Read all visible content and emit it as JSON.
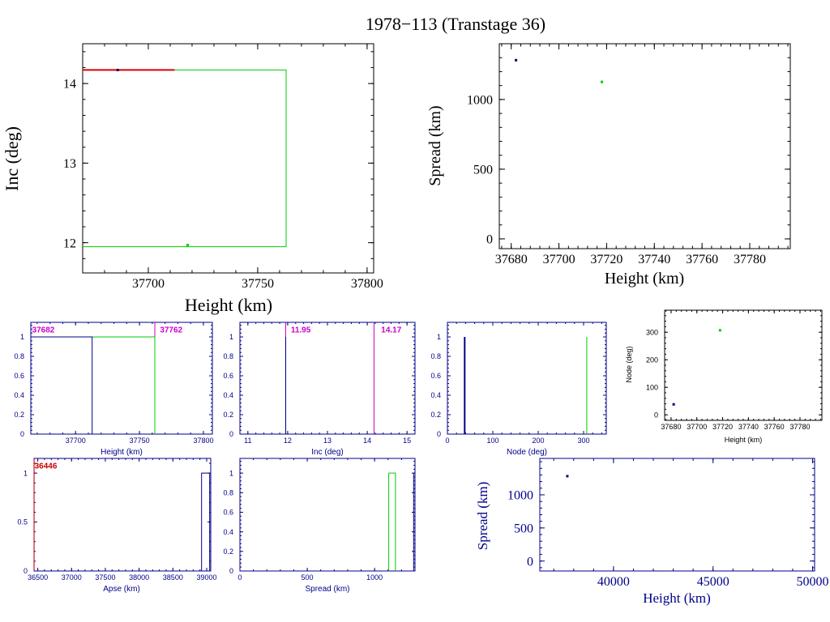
{
  "page_title": "1978−113 (Transtage 36)",
  "chart_data": [
    {
      "id": "inc_vs_height",
      "type": "line",
      "xlabel": "Height (km)",
      "ylabel": "Inc (deg)",
      "xlim": [
        37670,
        37803
      ],
      "ylim": [
        11.62,
        14.5
      ],
      "xticks": [
        37700,
        37750,
        37800
      ],
      "yticks": [
        12,
        13,
        14
      ],
      "series": [
        {
          "color": "#00cc00",
          "type": "polyline",
          "points": [
            [
              37670,
              14.17
            ],
            [
              37763,
              14.17
            ],
            [
              37763,
              11.95
            ],
            [
              37670,
              11.95
            ]
          ]
        },
        {
          "color": "#dd0000",
          "type": "polyline",
          "points": [
            [
              37670,
              14.17
            ],
            [
              37712,
              14.17
            ]
          ]
        },
        {
          "color": "#000088",
          "type": "point",
          "points": [
            [
              37686,
              14.17
            ]
          ]
        },
        {
          "color": "#00cc00",
          "type": "point",
          "points": [
            [
              37718,
              11.97
            ]
          ]
        }
      ]
    },
    {
      "id": "spread_vs_height",
      "type": "scatter",
      "xlabel": "Height (km)",
      "ylabel": "Spread (km)",
      "xlim": [
        37675,
        37797
      ],
      "ylim": [
        -70,
        1400
      ],
      "xticks": [
        37680,
        37700,
        37720,
        37740,
        37760,
        37780
      ],
      "yticks": [
        0,
        500,
        1000
      ],
      "series": [
        {
          "color": "#000088",
          "points": [
            [
              37682,
              1282
            ]
          ]
        },
        {
          "color": "#00cc00",
          "points": [
            [
              37718,
              1126
            ]
          ]
        }
      ]
    },
    {
      "id": "height_hist",
      "type": "line",
      "xlabel": "Height (km)",
      "xlim": [
        37665,
        37807
      ],
      "ylim": [
        0,
        1.15
      ],
      "xticks": [
        37700,
        37750,
        37800
      ],
      "yticks": [
        0,
        0.2,
        0.4,
        0.6,
        0.8,
        1
      ],
      "annotations": [
        {
          "text": "37682",
          "x": 37666,
          "y": 1.07,
          "color": "#cc00cc"
        },
        {
          "text": "37762",
          "x": 37766,
          "y": 1.07,
          "color": "#cc00cc"
        }
      ],
      "vlines": [
        {
          "x": 37762,
          "color": "#cc00cc"
        }
      ],
      "series": [
        {
          "color": "#00cc00",
          "type": "polyline",
          "points": [
            [
              37665,
              1
            ],
            [
              37762,
              1
            ],
            [
              37762,
              0
            ]
          ]
        },
        {
          "color": "#000088",
          "type": "polyline",
          "points": [
            [
              37665,
              1
            ],
            [
              37713,
              1
            ],
            [
              37713,
              0
            ]
          ]
        }
      ]
    },
    {
      "id": "inc_hist",
      "type": "line",
      "xlabel": "Inc (deg)",
      "xlim": [
        10.8,
        15.2
      ],
      "ylim": [
        0,
        1.15
      ],
      "xticks": [
        11,
        12,
        13,
        14,
        15
      ],
      "yticks": [
        0,
        0.2,
        0.4,
        0.6,
        0.8,
        1
      ],
      "annotations": [
        {
          "text": "11.95",
          "x": 12.08,
          "y": 1.07,
          "color": "#cc00cc"
        },
        {
          "text": "14.17",
          "x": 14.35,
          "y": 1.07,
          "color": "#cc00cc"
        }
      ],
      "vlines": [
        {
          "x": 11.95,
          "color": "#cc00cc"
        },
        {
          "x": 14.17,
          "color": "#cc00cc"
        }
      ],
      "series": [
        {
          "color": "#000088",
          "type": "polyline",
          "points": [
            [
              11.95,
              0
            ],
            [
              11.95,
              1
            ]
          ]
        }
      ]
    },
    {
      "id": "node_hist",
      "type": "line",
      "xlabel": "Node (deg)",
      "xlim": [
        0,
        350
      ],
      "ylim": [
        0,
        1.15
      ],
      "xticks": [
        0,
        100,
        200,
        300
      ],
      "yticks": [
        0,
        0.2,
        0.4,
        0.6,
        0.8,
        1
      ],
      "series": [
        {
          "color": "#000088",
          "type": "polyline",
          "points": [
            [
              38,
              0
            ],
            [
              38,
              1
            ]
          ]
        },
        {
          "color": "#00cc00",
          "type": "polyline",
          "points": [
            [
              307,
              0
            ],
            [
              307,
              1
            ]
          ]
        }
      ]
    },
    {
      "id": "node_vs_height",
      "type": "scatter",
      "xlabel": "Height (km)",
      "ylabel": "Node (deg)",
      "xlim": [
        37675,
        37797
      ],
      "ylim": [
        -20,
        380
      ],
      "xticks": [
        37680,
        37700,
        37720,
        37740,
        37760,
        37780
      ],
      "yticks": [
        0,
        100,
        200,
        300
      ],
      "series": [
        {
          "color": "#000088",
          "points": [
            [
              37682,
              38
            ]
          ]
        },
        {
          "color": "#00cc00",
          "points": [
            [
              37718,
              307
            ]
          ]
        }
      ]
    },
    {
      "id": "apse_hist",
      "type": "line",
      "xlabel": "Apse (km)",
      "xlim": [
        36445,
        39060
      ],
      "ylim": [
        0,
        1.15
      ],
      "xticks": [
        36500,
        37000,
        37500,
        38000,
        38500,
        39000
      ],
      "yticks": [
        0,
        0.5,
        1
      ],
      "annotations": [
        {
          "text": "36446",
          "x": 36452,
          "y": 1.07,
          "color": "#cc0000"
        }
      ],
      "vlines": [
        {
          "x": 36446,
          "color": "#cc0000"
        }
      ],
      "series": [
        {
          "color": "#000088",
          "type": "polyline",
          "points": [
            [
              38925,
              0
            ],
            [
              38925,
              1
            ],
            [
              39045,
              1
            ],
            [
              39045,
              0
            ]
          ]
        }
      ]
    },
    {
      "id": "spread_hist",
      "type": "line",
      "xlabel": "Spread (km)",
      "xlim": [
        0,
        1300
      ],
      "ylim": [
        0,
        1.15
      ],
      "xticks": [
        0,
        500,
        1000
      ],
      "yticks": [
        0,
        0.2,
        0.4,
        0.6,
        0.8,
        1
      ],
      "series": [
        {
          "color": "#00cc00",
          "type": "polyline",
          "points": [
            [
              1105,
              0
            ],
            [
              1105,
              1
            ],
            [
              1155,
              1
            ],
            [
              1155,
              0
            ]
          ]
        },
        {
          "color": "#000088",
          "type": "polyline",
          "points": [
            [
              1290,
              0
            ],
            [
              1290,
              1
            ]
          ]
        }
      ]
    },
    {
      "id": "spread_vs_height_wide",
      "type": "scatter",
      "xlabel": "Height (km)",
      "ylabel": "Spread (km)",
      "xlim": [
        36300,
        50100
      ],
      "ylim": [
        -150,
        1550
      ],
      "xticks": [
        40000,
        45000,
        50000
      ],
      "yticks": [
        0,
        500,
        1000
      ],
      "series": [
        {
          "color": "#000088",
          "points": [
            [
              37682,
              1282
            ]
          ]
        }
      ]
    }
  ]
}
